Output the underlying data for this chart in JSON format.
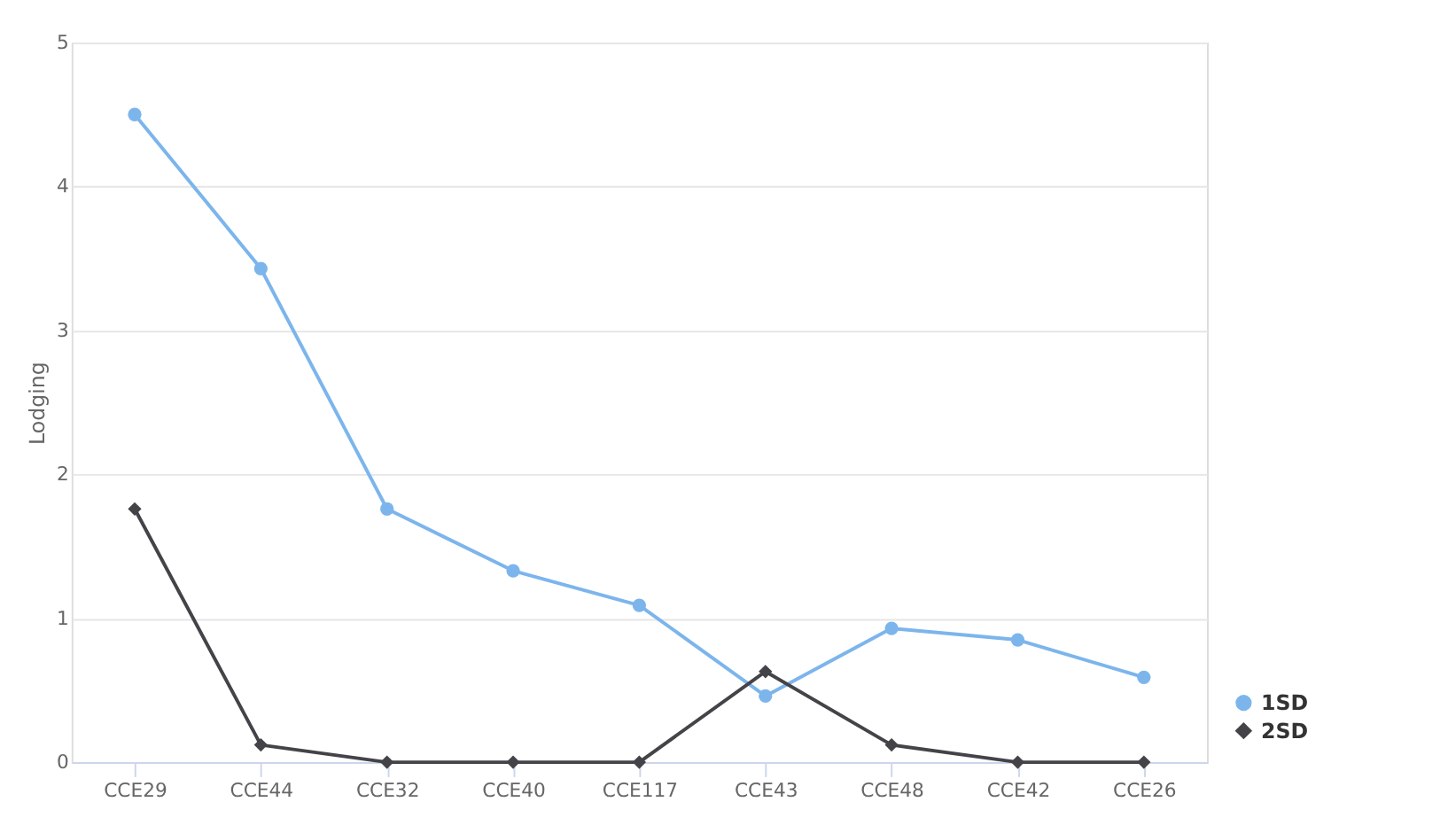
{
  "chart_data": {
    "type": "line",
    "ylabel": "Lodging",
    "categories": [
      "CCE29",
      "CCE44",
      "CCE32",
      "CCE40",
      "CCE117",
      "CCE43",
      "CCE48",
      "CCE42",
      "CCE26"
    ],
    "series": [
      {
        "name": "1SD",
        "color": "#7cb5ec",
        "marker": "circle",
        "values": [
          4.5,
          3.43,
          1.76,
          1.33,
          1.09,
          0.46,
          0.93,
          0.85,
          0.59
        ]
      },
      {
        "name": "2SD",
        "color": "#434348",
        "marker": "diamond",
        "values": [
          1.76,
          0.12,
          0,
          0,
          0,
          0.63,
          0.12,
          0,
          0
        ]
      }
    ],
    "ylim": [
      0,
      5
    ],
    "yticks": [
      0,
      1,
      2,
      3,
      4,
      5
    ],
    "grid": "y",
    "legend": "bottom right"
  }
}
